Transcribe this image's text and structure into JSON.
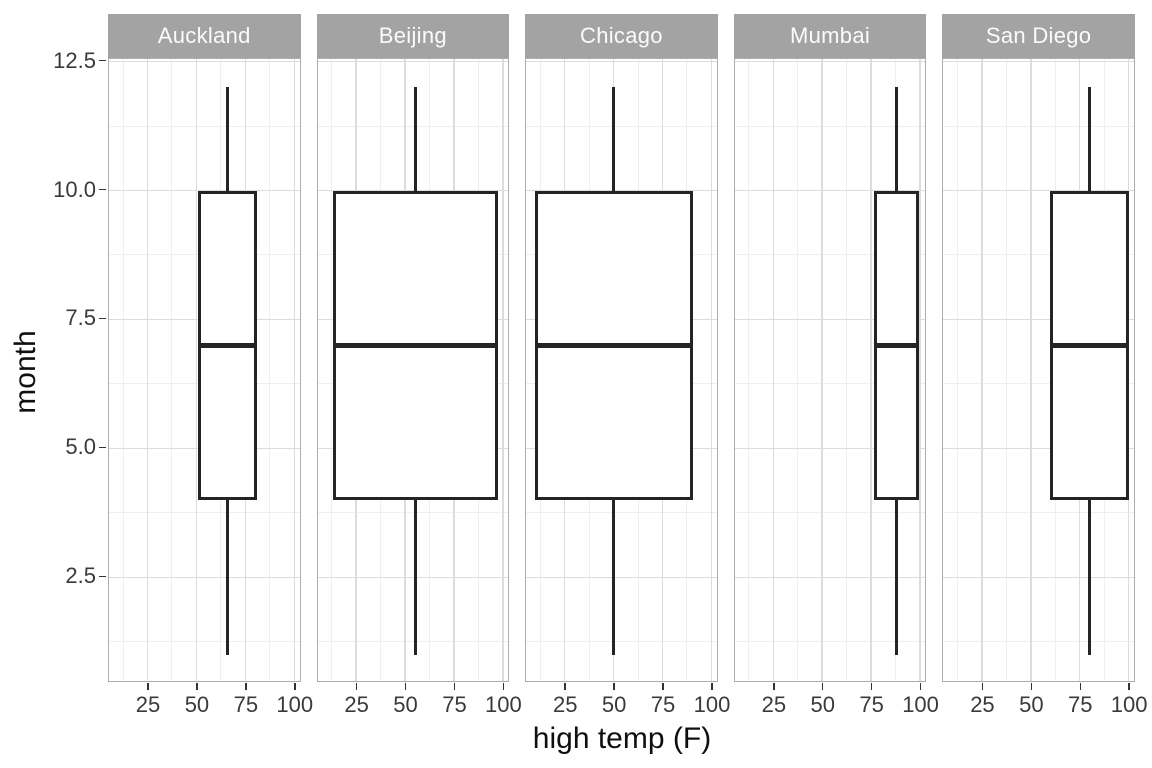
{
  "chart_data": {
    "type": "boxplot",
    "title": "",
    "xlabel": "high temp (F)",
    "ylabel": "month",
    "facet_variable": "city",
    "legend": "none",
    "grid": "major+minor",
    "x_domain": [
      5.3,
      103.7
    ],
    "y_domain": [
      0.45,
      12.55
    ],
    "x_ticks": [
      25,
      50,
      75,
      100
    ],
    "x_minor_gridlines": [
      12.5,
      37.5,
      62.5,
      87.5
    ],
    "y_ticks": [
      2.5,
      5.0,
      7.5,
      10.0,
      12.5
    ],
    "y_tick_labels": [
      "2.5",
      "5.0",
      "7.5",
      "10.0",
      "12.5"
    ],
    "y_minor_gridlines": [
      1.25,
      3.75,
      6.25,
      8.75,
      11.25
    ],
    "month_box_stats": {
      "whisker_low": 1,
      "q1": 4,
      "median": 7,
      "q3": 10,
      "whisker_high": 12
    },
    "facets": [
      {
        "label": "Auckland",
        "temp_min": 51,
        "temp_mid": 66,
        "temp_max": 81
      },
      {
        "label": "Beijing",
        "temp_min": 13,
        "temp_mid": 55.5,
        "temp_max": 97.5
      },
      {
        "label": "Chicago",
        "temp_min": 10,
        "temp_mid": 50,
        "temp_max": 90.5
      },
      {
        "label": "Mumbai",
        "temp_min": 76.5,
        "temp_mid": 88,
        "temp_max": 99.5
      },
      {
        "label": "San Diego",
        "temp_min": 60,
        "temp_mid": 80,
        "temp_max": 100
      }
    ]
  },
  "colors": {
    "background": "#ffffff",
    "strip_fill": "#a3a3a3",
    "strip_text": "#fbfbfb",
    "panel_border": "#adadad",
    "grid_major": "#dcdcdc",
    "grid_minor": "#efefef",
    "box_stroke": "#242424",
    "box_fill": "#ffffff",
    "tick_mark": "#333333",
    "tick_label": "#3a3a3a",
    "axis_title": "#0f0f0f"
  }
}
